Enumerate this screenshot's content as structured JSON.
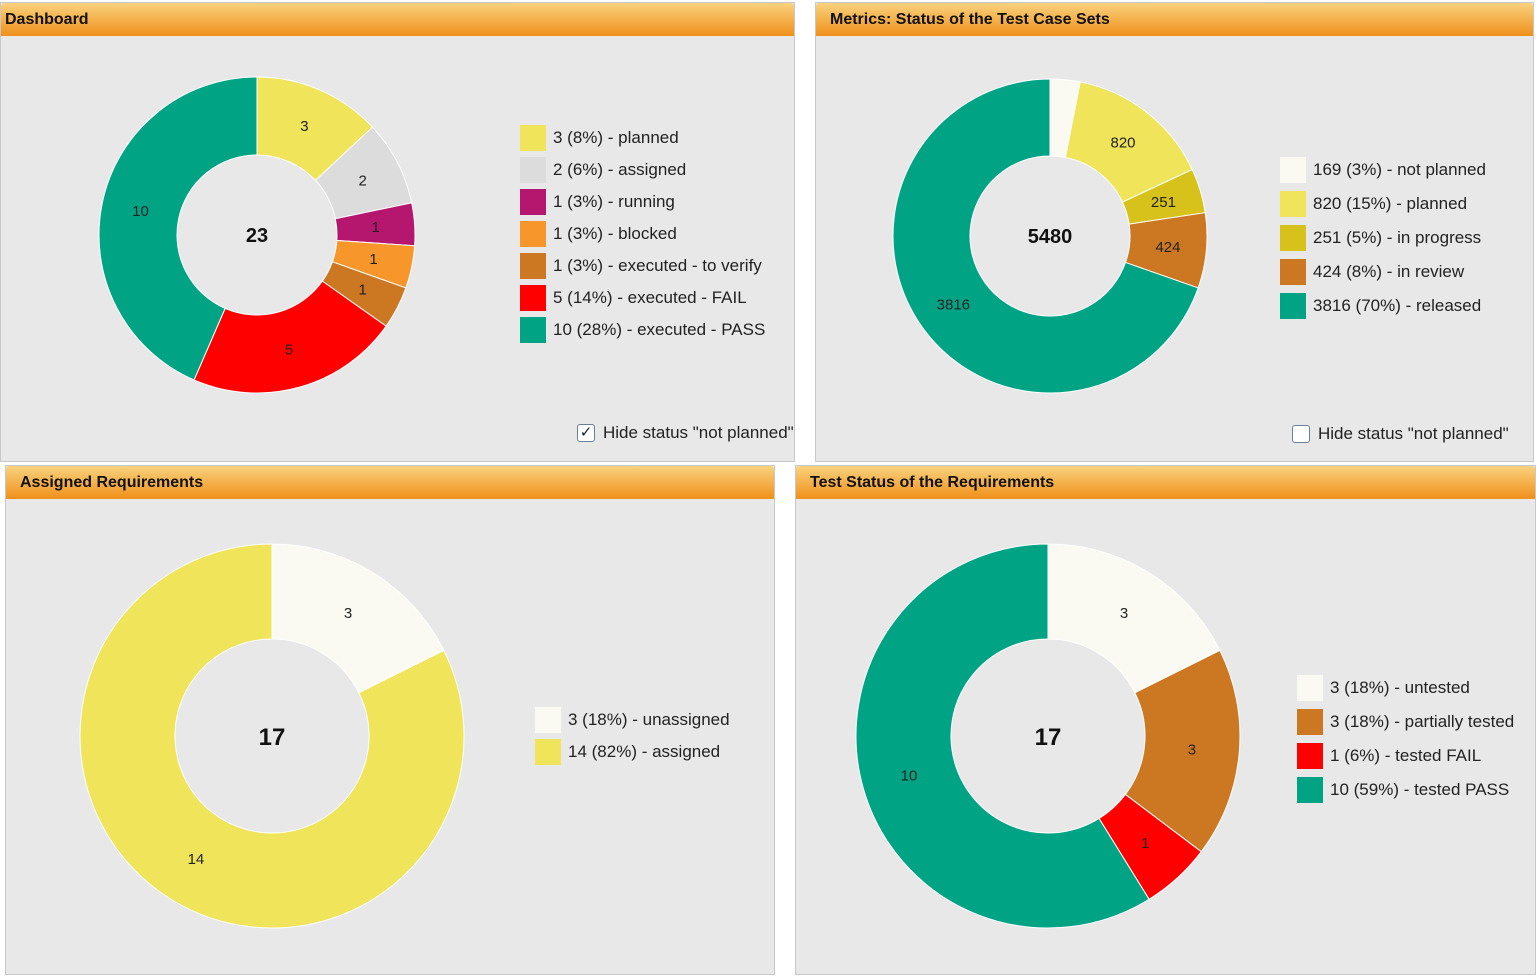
{
  "panels": [
    {
      "title": "Dashboard",
      "checkbox": {
        "label": "Hide status \"not planned\"",
        "checked": true
      }
    },
    {
      "title": "Metrics: Status of the Test Case Sets",
      "checkbox": {
        "label": "Hide status \"not planned\"",
        "checked": false
      }
    },
    {
      "title": "Assigned Requirements"
    },
    {
      "title": "Test Status of the Requirements"
    }
  ],
  "chart_data": [
    {
      "type": "pie",
      "donut": true,
      "total": "23",
      "categories": [
        "planned",
        "assigned",
        "running",
        "blocked",
        "executed - to verify",
        "executed - FAIL",
        "executed - PASS"
      ],
      "values": [
        3,
        2,
        1,
        1,
        1,
        5,
        10
      ],
      "colors": [
        "#f0e45a",
        "#dcdcdc",
        "#b5176f",
        "#f7962b",
        "#cc7722",
        "#fe0000",
        "#00a485"
      ],
      "legend": [
        "3 (8%) - planned",
        "2 (6%) - assigned",
        "1 (3%) - running",
        "1 (3%) - blocked",
        "1 (3%) - executed - to verify",
        "5 (14%) - executed - FAIL",
        "10 (28%) - executed - PASS"
      ]
    },
    {
      "type": "pie",
      "donut": true,
      "total": "5480",
      "categories": [
        "not planned",
        "planned",
        "in progress",
        "in review",
        "released"
      ],
      "values": [
        169,
        820,
        251,
        424,
        3816
      ],
      "colors": [
        "#fafaf2",
        "#f0e45a",
        "#d6c21a",
        "#cc7722",
        "#00a485"
      ],
      "legend": [
        "169 (3%) - not planned",
        "820 (15%) - planned",
        "251 (5%) - in progress",
        "424 (8%) - in review",
        "3816 (70%) - released"
      ]
    },
    {
      "type": "pie",
      "donut": true,
      "total": "17",
      "categories": [
        "unassigned",
        "assigned"
      ],
      "values": [
        3,
        14
      ],
      "colors": [
        "#fafaf2",
        "#f0e45a"
      ],
      "legend": [
        "3 (18%) - unassigned",
        "14 (82%) - assigned"
      ]
    },
    {
      "type": "pie",
      "donut": true,
      "total": "17",
      "categories": [
        "untested",
        "partially tested",
        "tested FAIL",
        "tested PASS"
      ],
      "values": [
        3,
        3,
        1,
        10
      ],
      "colors": [
        "#fafaf2",
        "#cc7722",
        "#fe0000",
        "#00a485"
      ],
      "legend": [
        "3 (18%) - untested",
        "3 (18%) - partially tested",
        "1 (6%) - tested FAIL",
        "10 (59%) - tested PASS"
      ]
    }
  ]
}
